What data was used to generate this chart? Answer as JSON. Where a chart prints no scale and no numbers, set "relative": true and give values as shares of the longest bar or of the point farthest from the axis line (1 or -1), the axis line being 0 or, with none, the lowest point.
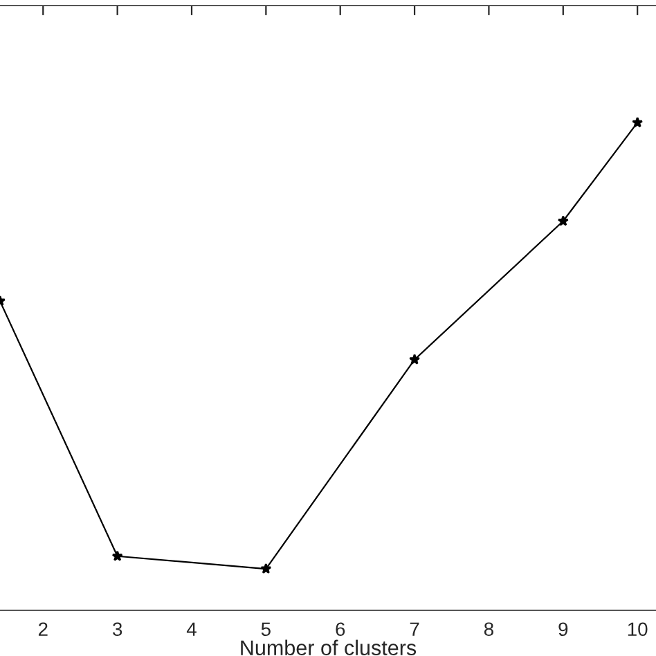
{
  "chart_data": {
    "type": "line",
    "xlabel": "Number of clusters",
    "relative": true,
    "x": [
      1.42,
      3,
      5,
      7,
      9,
      10
    ],
    "series": [
      {
        "color": "#000000",
        "values": [
          0.634,
          0.111,
          0.085,
          0.514,
          0.798,
          1.0
        ]
      }
    ],
    "xlim": [
      1.42,
      10.25
    ],
    "xticks": [
      2,
      3,
      4,
      5,
      6,
      7,
      8,
      9,
      10
    ],
    "marker": "star",
    "line_style": "solid",
    "grid": false,
    "legend": false
  }
}
